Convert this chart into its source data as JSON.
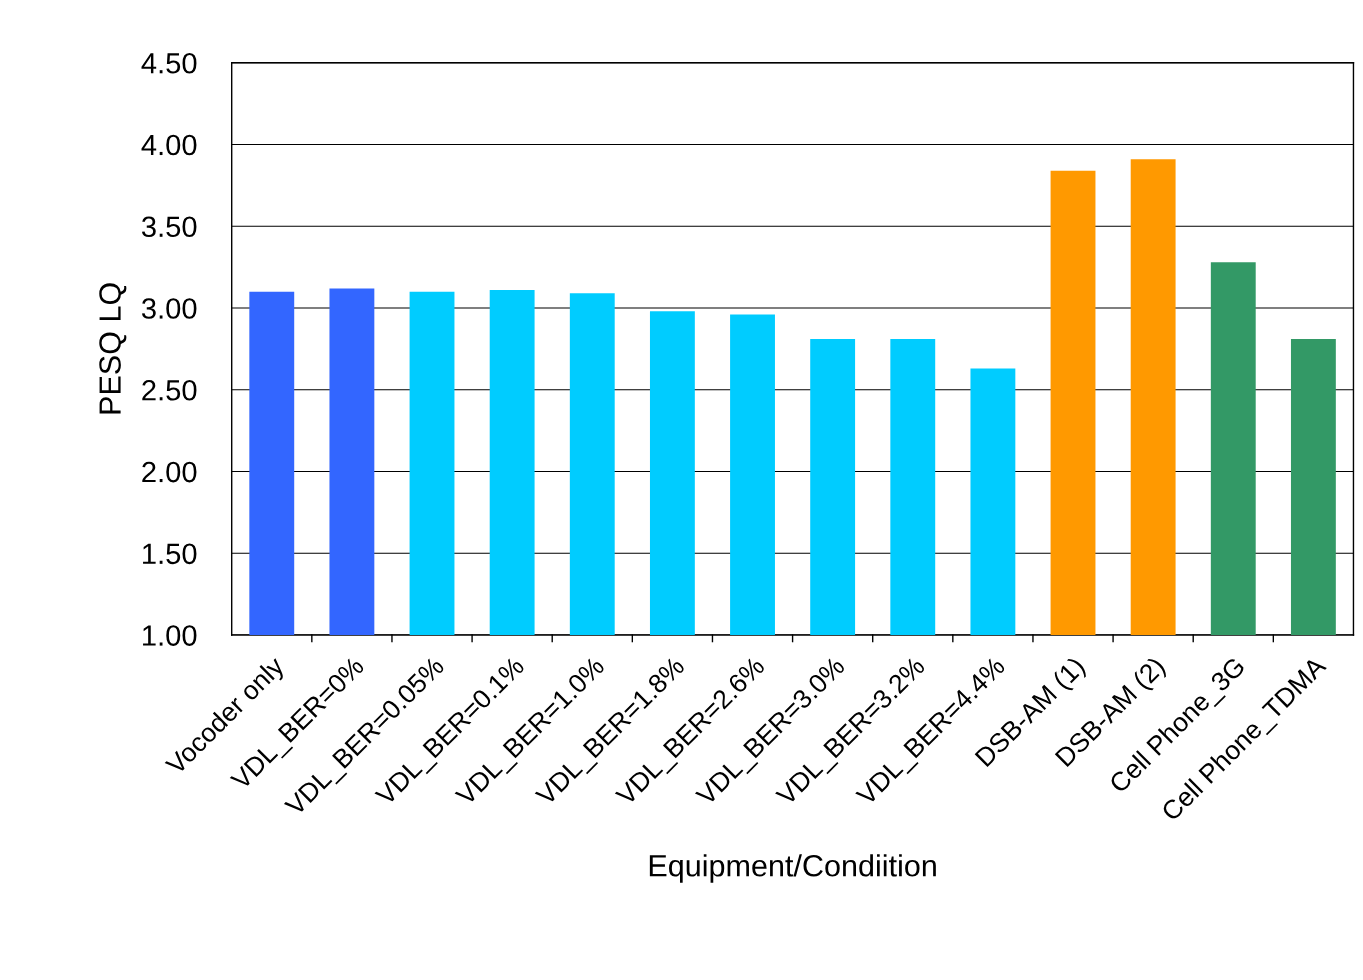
{
  "chart_data": {
    "type": "bar",
    "xlabel": "Equipment/Condiition",
    "ylabel": "PESQ LQ",
    "categories": [
      "Vocoder only",
      "VDL_BER=0%",
      "VDL_BER=0.05%",
      "VDL_BER=0.1%",
      "VDL_BER=1.0%",
      "VDL_BER=1.8%",
      "VDL_BER=2.6%",
      "VDL_BER=3.0%",
      "VDL_BER=3.2%",
      "VDL_BER=4.4%",
      "DSB-AM (1)",
      "DSB-AM (2)",
      "Cell Phone_3G",
      "Cell Phone_TDMA"
    ],
    "values": [
      3.1,
      3.12,
      3.1,
      3.11,
      3.09,
      2.98,
      2.96,
      2.81,
      2.81,
      2.63,
      3.84,
      3.91,
      3.28,
      2.81
    ],
    "colors": [
      "#3366ff",
      "#3366ff",
      "#00ccff",
      "#00ccff",
      "#00ccff",
      "#00ccff",
      "#00ccff",
      "#00ccff",
      "#00ccff",
      "#00ccff",
      "#ff9900",
      "#ff9900",
      "#339966",
      "#339966"
    ],
    "ylim": [
      1.0,
      4.5
    ],
    "yticks": [
      {
        "value": 1.0,
        "label": "1.00"
      },
      {
        "value": 1.5,
        "label": "1.50"
      },
      {
        "value": 2.0,
        "label": "2.00"
      },
      {
        "value": 2.5,
        "label": "2.50"
      },
      {
        "value": 3.0,
        "label": "3.00"
      },
      {
        "value": 3.5,
        "label": "3.50"
      },
      {
        "value": 4.0,
        "label": "4.00"
      },
      {
        "value": 4.5,
        "label": "4.50"
      }
    ],
    "grid": "y"
  }
}
